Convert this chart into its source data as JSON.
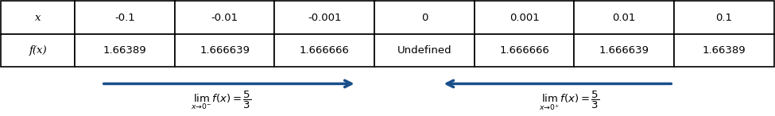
{
  "col_labels": [
    "x",
    "-0.1",
    "-0.01",
    "-0.001",
    "0",
    "0.001",
    "0.01",
    "0.1"
  ],
  "row1_label": "x",
  "row2_label": "f(x)",
  "row1_values": [
    "-0.1",
    "-0.01",
    "-0.001",
    "0",
    "0.001",
    "0.01",
    "0.1"
  ],
  "row2_values": [
    "1.66389",
    "1.666639",
    "1.666666",
    "Undefined",
    "1.666666",
    "1.666639",
    "1.66389"
  ],
  "table_edge_color": "#000000",
  "header_bg": "#ffffff",
  "row_bg": "#ffffff",
  "arrow_color": "#1a4f8a",
  "text_color": "#000000",
  "left_limit_label": "lim",
  "left_limit_sub": "x→0⁻",
  "left_limit_expr": "f(x) = \\dfrac{5}{3}",
  "right_limit_label": "lim",
  "right_limit_sub": "x→0⁺",
  "right_limit_expr": "f(x) = \\dfrac{5}{3}",
  "fig_bg": "#ffffff"
}
